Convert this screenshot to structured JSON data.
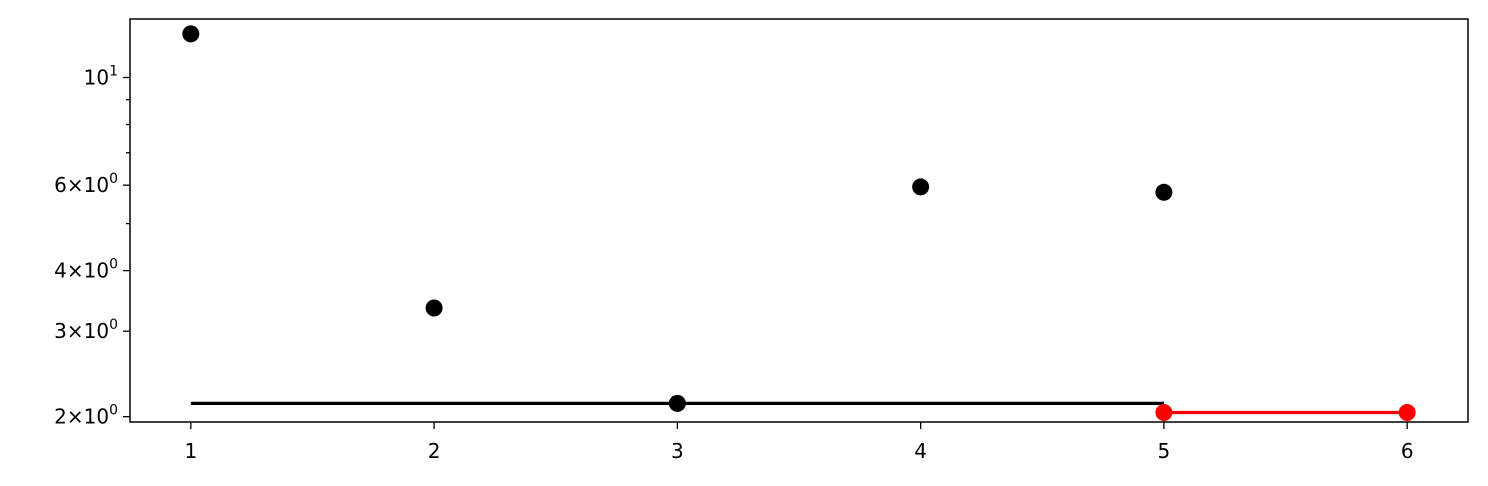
{
  "chart_data": {
    "type": "scatter",
    "title": "",
    "xlabel": "",
    "ylabel": "",
    "xlim": [
      0.75,
      6.25
    ],
    "ylim": [
      1.95,
      13.2
    ],
    "yscale": "log",
    "grid": false,
    "x_ticks": [
      {
        "value": 1,
        "label": "1"
      },
      {
        "value": 2,
        "label": "2"
      },
      {
        "value": 3,
        "label": "3"
      },
      {
        "value": 4,
        "label": "4"
      },
      {
        "value": 5,
        "label": "5"
      },
      {
        "value": 6,
        "label": "6"
      }
    ],
    "y_ticks": [
      {
        "value": 10,
        "base": "10",
        "exp": "1"
      },
      {
        "value": 6,
        "base": "6×10",
        "exp": "0"
      },
      {
        "value": 4,
        "base": "4×10",
        "exp": "0"
      },
      {
        "value": 3,
        "base": "3×10",
        "exp": "0"
      },
      {
        "value": 2,
        "base": "2×10",
        "exp": "0"
      }
    ],
    "y_minor_ticks": [
      5,
      7,
      8,
      9
    ],
    "series": [
      {
        "kind": "points",
        "color": "#000000",
        "points": [
          {
            "x": 1,
            "y": 12.3
          },
          {
            "x": 2,
            "y": 3.35
          },
          {
            "x": 3,
            "y": 2.13
          },
          {
            "x": 4,
            "y": 5.95
          },
          {
            "x": 5,
            "y": 5.8
          }
        ]
      },
      {
        "kind": "line",
        "color": "#000000",
        "points": [
          {
            "x": 1,
            "y": 2.13
          },
          {
            "x": 5,
            "y": 2.13
          }
        ]
      },
      {
        "kind": "line-with-points",
        "color": "#ff0000",
        "points": [
          {
            "x": 5,
            "y": 2.04
          },
          {
            "x": 6,
            "y": 2.04
          }
        ]
      }
    ]
  }
}
